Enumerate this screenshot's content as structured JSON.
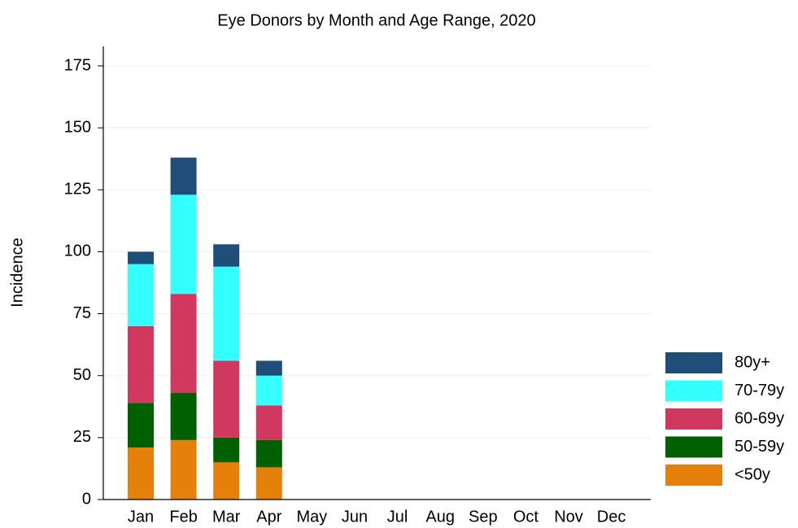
{
  "chart_data": {
    "type": "bar",
    "stacked": true,
    "title": "Eye Donors by Month and Age Range, 2020",
    "y_label": "Incidence",
    "categories": [
      "Jan",
      "Feb",
      "Mar",
      "Apr",
      "May",
      "Jun",
      "Jul",
      "Aug",
      "Sep",
      "Oct",
      "Nov",
      "Dec"
    ],
    "series": [
      {
        "name": "<50y",
        "color": "#e5810a",
        "values": [
          21,
          24,
          15,
          13,
          null,
          null,
          null,
          null,
          null,
          null,
          null,
          null
        ]
      },
      {
        "name": "50-59y",
        "color": "#006000",
        "values": [
          18,
          19,
          10,
          11,
          null,
          null,
          null,
          null,
          null,
          null,
          null,
          null
        ]
      },
      {
        "name": "60-69y",
        "color": "#d0385f",
        "values": [
          31,
          40,
          31,
          14,
          null,
          null,
          null,
          null,
          null,
          null,
          null,
          null
        ]
      },
      {
        "name": "70-79y",
        "color": "#33ffff",
        "values": [
          25,
          40,
          38,
          12,
          null,
          null,
          null,
          null,
          null,
          null,
          null,
          null
        ]
      },
      {
        "name": "80y+",
        "color": "#1f4e79",
        "values": [
          5,
          15,
          9,
          6,
          null,
          null,
          null,
          null,
          null,
          null,
          null,
          null
        ]
      }
    ],
    "ylim": [
      0,
      175
    ],
    "yticks": [
      0,
      25,
      50,
      75,
      100,
      125,
      150,
      175
    ],
    "grid": true,
    "legend": "right"
  }
}
